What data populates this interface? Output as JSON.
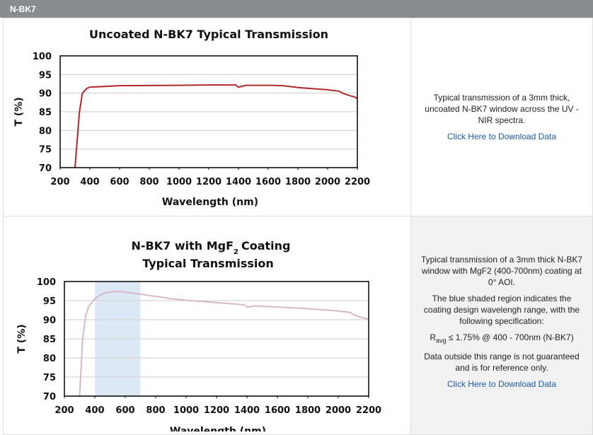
{
  "header": {
    "title": "N-BK7"
  },
  "chart_data": [
    {
      "type": "line",
      "title": "Uncoated N-BK7 Typical Transmission",
      "x_label": "Wavelength (nm)",
      "y_label": "T (%)",
      "xlim": [
        200,
        2200
      ],
      "xticks": [
        200,
        400,
        600,
        800,
        1000,
        1200,
        1400,
        1600,
        1800,
        2000,
        2200
      ],
      "ylim": [
        70,
        100
      ],
      "yticks": [
        70,
        75,
        80,
        85,
        90,
        95,
        100
      ],
      "grid": true,
      "series": [
        {
          "name": "N-BK7",
          "color": "#b3272d",
          "x": [
            300,
            330,
            350,
            380,
            400,
            600,
            1000,
            1200,
            1380,
            1400,
            1450,
            1600,
            1700,
            1800,
            1900,
            2000,
            2080,
            2100,
            2150,
            2180,
            2200
          ],
          "values": [
            70,
            85,
            90,
            91.3,
            91.6,
            92,
            92.1,
            92.2,
            92.2,
            91.6,
            92.1,
            92.1,
            92,
            91.5,
            91.2,
            90.9,
            90.5,
            90,
            89.3,
            89,
            88.5
          ]
        }
      ]
    },
    {
      "type": "line",
      "title": "N-BK7 with MgF",
      "title_subscript": "2",
      "title_suffix": "Coating",
      "subtitle": "Typical Transmission",
      "x_label": "Wavelength (nm)",
      "y_label": "T (%)",
      "xlim": [
        200,
        2200
      ],
      "xticks": [
        200,
        400,
        600,
        800,
        1000,
        1200,
        1400,
        1600,
        1800,
        2000,
        2200
      ],
      "ylim": [
        70,
        100
      ],
      "yticks": [
        70,
        75,
        80,
        85,
        90,
        95,
        100
      ],
      "grid": true,
      "shaded_range": [
        400,
        700
      ],
      "shaded_color": "#dce8f4",
      "series": [
        {
          "name": "N-BK7 MgF2",
          "color": "#d7b8c4",
          "x": [
            300,
            320,
            340,
            360,
            400,
            450,
            500,
            550,
            600,
            700,
            800,
            900,
            1000,
            1200,
            1380,
            1400,
            1450,
            1600,
            1800,
            2000,
            2080,
            2100,
            2150,
            2200
          ],
          "values": [
            70,
            85,
            91,
            93.5,
            95.5,
            96.8,
            97.3,
            97.4,
            97.2,
            96.7,
            96.1,
            95.5,
            95.1,
            94.5,
            93.9,
            93.3,
            93.6,
            93.3,
            92.9,
            92.3,
            91.9,
            91.3,
            90.6,
            90.1
          ]
        }
      ]
    }
  ],
  "descriptions": [
    {
      "paragraphs": [
        "Typical transmission of a 3mm thick, uncoated N-BK7 window across the UV - NIR spectra."
      ],
      "link": "Click Here to Download Data"
    },
    {
      "paragraphs": [
        "Typical transmission of a 3mm thick N-BK7 window with MgF2 (400-700nm) coating at 0° AOI.",
        "The blue shaded region indicates the coating design wavelengh range, with the following specification:"
      ],
      "spec": {
        "symbol": "R",
        "subscript": "avg",
        "text": "≤ 1.75% @ 400 - 700nm (N-BK7)"
      },
      "notes": [
        "Data outside this range is not guaranteed and is for reference only."
      ],
      "link": "Click Here to Download Data"
    }
  ]
}
